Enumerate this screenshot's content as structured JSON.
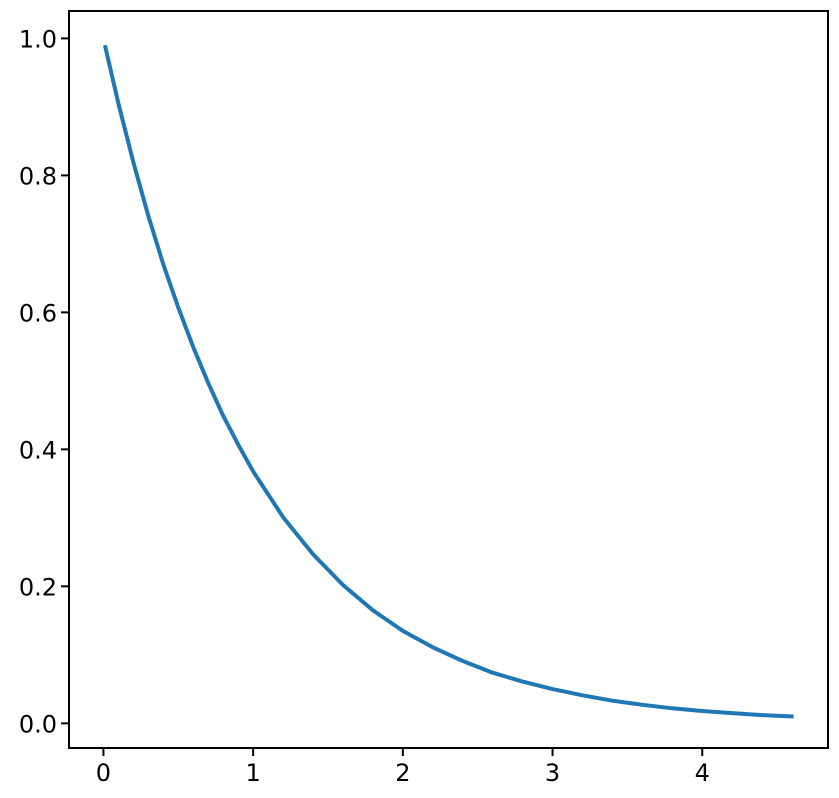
{
  "chart_data": {
    "type": "line",
    "title": "",
    "xlabel": "",
    "ylabel": "",
    "xlim": [
      -0.23,
      4.84
    ],
    "ylim": [
      -0.036,
      1.04
    ],
    "x_ticks": [
      0,
      1,
      2,
      3,
      4
    ],
    "x_tick_labels": [
      "0",
      "1",
      "2",
      "3",
      "4"
    ],
    "y_ticks": [
      0.0,
      0.2,
      0.4,
      0.6,
      0.8,
      1.0
    ],
    "y_tick_labels": [
      "0.0",
      "0.2",
      "0.4",
      "0.6",
      "0.8",
      "1.0"
    ],
    "grid": false,
    "legend": "none",
    "series": [
      {
        "color": "#1f77b4",
        "x": [
          0.01,
          0.1,
          0.2,
          0.3,
          0.4,
          0.5,
          0.6,
          0.7,
          0.8,
          0.9,
          1.0,
          1.2,
          1.4,
          1.6,
          1.8,
          2.0,
          2.2,
          2.4,
          2.6,
          2.8,
          3.0,
          3.2,
          3.4,
          3.6,
          3.8,
          4.0,
          4.2,
          4.4,
          4.61
        ],
        "y": [
          0.99,
          0.905,
          0.819,
          0.741,
          0.67,
          0.607,
          0.549,
          0.497,
          0.449,
          0.407,
          0.368,
          0.301,
          0.247,
          0.202,
          0.165,
          0.135,
          0.111,
          0.091,
          0.074,
          0.061,
          0.05,
          0.041,
          0.033,
          0.027,
          0.022,
          0.018,
          0.015,
          0.012,
          0.01
        ]
      }
    ]
  }
}
